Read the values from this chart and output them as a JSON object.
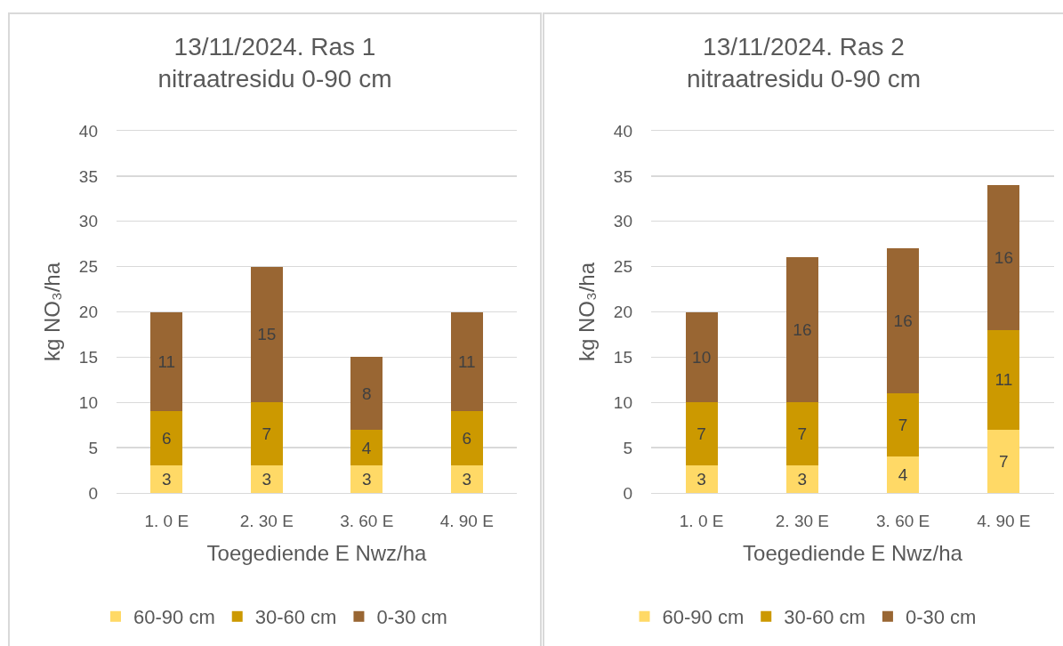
{
  "chart_data": [
    {
      "type": "bar",
      "title": "13/11/2024. Ras 1\nnitraatresidu 0-90 cm",
      "xlabel": "Toegediende E Nwz/ha",
      "ylabel": "kg NO₃/ha",
      "categories": [
        "1. 0 E",
        "2. 30 E",
        "3. 60 E",
        "4. 90 E"
      ],
      "series": [
        {
          "name": "60-90 cm",
          "color": "#ffd966",
          "values": [
            3,
            3,
            3,
            3
          ]
        },
        {
          "name": "30-60 cm",
          "color": "#cc9900",
          "values": [
            6,
            7,
            4,
            6
          ]
        },
        {
          "name": "0-30 cm",
          "color": "#996633",
          "values": [
            11,
            15,
            8,
            11
          ]
        }
      ],
      "stacked": true,
      "ylim": [
        0,
        40
      ],
      "yticks": [
        0,
        5,
        10,
        15,
        20,
        25,
        30,
        35,
        40
      ],
      "grid": "y",
      "legend": "bottom",
      "data_labels": true
    },
    {
      "type": "bar",
      "title": "13/11/2024. Ras 2\nnitraatresidu 0-90 cm",
      "xlabel": "Toegediende E Nwz/ha",
      "ylabel": "kg NO₃/ha",
      "categories": [
        "1. 0 E",
        "2. 30 E",
        "3. 60 E",
        "4. 90 E"
      ],
      "series": [
        {
          "name": "60-90 cm",
          "color": "#ffd966",
          "values": [
            3,
            3,
            4,
            7
          ]
        },
        {
          "name": "30-60 cm",
          "color": "#cc9900",
          "values": [
            7,
            7,
            7,
            11
          ]
        },
        {
          "name": "0-30 cm",
          "color": "#996633",
          "values": [
            10,
            16,
            16,
            16
          ]
        }
      ],
      "stacked": true,
      "ylim": [
        0,
        40
      ],
      "yticks": [
        0,
        5,
        10,
        15,
        20,
        25,
        30,
        35,
        40
      ],
      "grid": "y",
      "legend": "bottom",
      "data_labels": true
    }
  ]
}
